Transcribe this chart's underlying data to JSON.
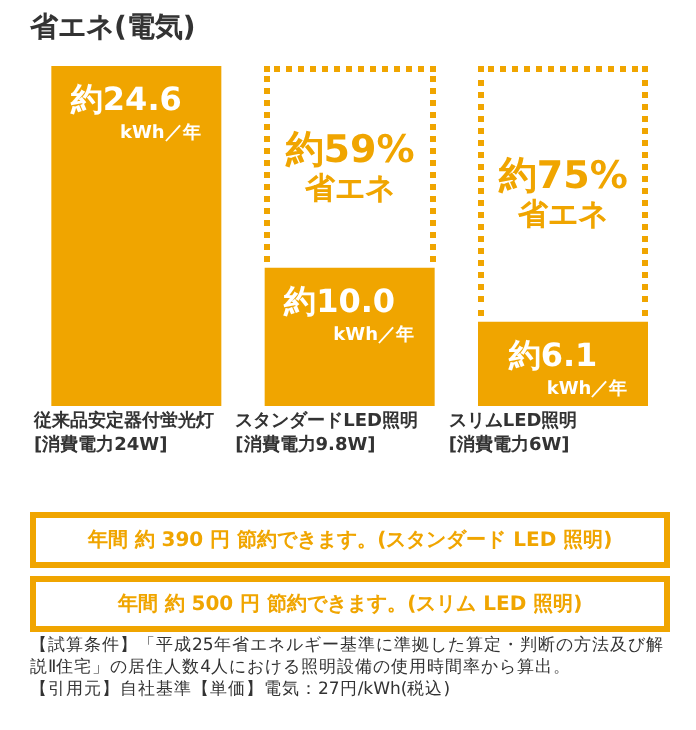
{
  "chart_data": {
    "type": "bar",
    "title": "省エネ(電気)",
    "categories": [
      "従来品安定器付蛍光灯\n[消費電力24W]",
      "スタンダードLED照明\n[消費電力9.8W]",
      "スリムLED照明\n[消費電力6W]"
    ],
    "values": [
      24.6,
      10.0,
      6.1
    ],
    "color": "#f0a500",
    "value_labels": [
      "約24.6 kWh／年",
      "約10.0 kWh／年",
      "約6.1 kWh／年"
    ],
    "annotations": [
      "約59%\n省エネ",
      "約75%\n省エネ",
      "年間 約 390 円 節約できます。(スタンダード LED 照明)",
      "年間 約 500 円 節約できます。(スリム LED 照明)",
      "【試算条件】「平成25年省エネルギー基準に準拠した算定・判断の方法及び解説Ⅱ住宅」の居住人数4人における照明設備の使用時間率から算出。",
      "【引用元】自社基準【単価】電気：27円/kWh(税込)"
    ]
  }
}
